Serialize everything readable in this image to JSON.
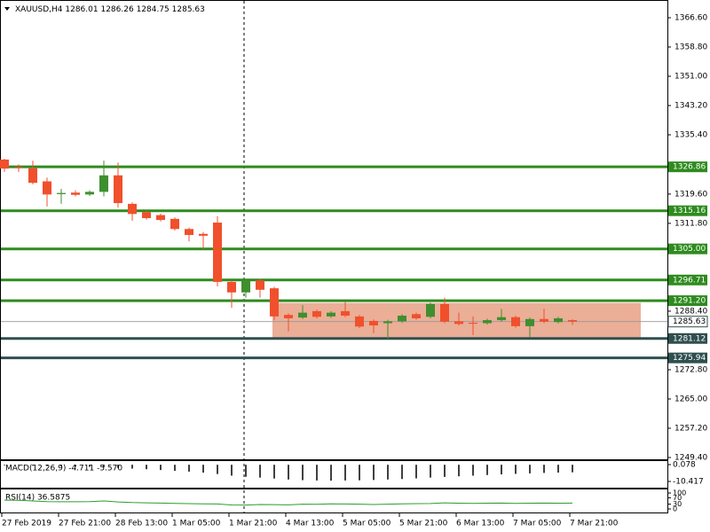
{
  "chart_data": {
    "type": "candlestick",
    "title": "XAUUSD,H4",
    "categories": [
      "27 Feb 2019",
      null,
      null,
      null,
      "27 Feb 21:00",
      null,
      null,
      null,
      "28 Feb 13:00",
      null,
      null,
      null,
      "1 Mar 05:00",
      null,
      null,
      null,
      "1 Mar 21:00",
      null,
      null,
      null,
      "4 Mar 13:00",
      null,
      null,
      null,
      "5 Mar 05:00",
      null,
      null,
      null,
      "5 Mar 21:00",
      null,
      null,
      null,
      "6 Mar 13:00",
      null,
      null,
      null,
      "7 Mar 05:00",
      null,
      null,
      null,
      "7 Mar 21:00"
    ],
    "open": [
      1328.8,
      1326.8,
      1326.5,
      1323.0,
      1319.6,
      1320.0,
      1319.5,
      1320.2,
      1324.6,
      1317.0,
      1314.8,
      1314.0,
      1313.0,
      1310.3,
      1309.0,
      1312.0,
      1296.2,
      1293.4,
      1296.6,
      1294.5,
      1287.4,
      1286.7,
      1288.4,
      1287.0,
      1288.4,
      1287.0,
      1285.8,
      1285.2,
      1285.7,
      1287.6,
      1286.9,
      1290.3,
      1285.7,
      1285.3,
      1285.2,
      1286.0,
      1286.8,
      1284.4,
      1286.3,
      1285.5,
      1286.01
    ],
    "high": [
      1329.0,
      1327.5,
      1328.5,
      1324.0,
      1321.0,
      1320.6,
      1320.6,
      1328.5,
      1328.0,
      1317.4,
      1315.2,
      1314.4,
      1313.4,
      1310.7,
      1309.5,
      1313.7,
      1296.6,
      1297.0,
      1297.0,
      1294.9,
      1287.8,
      1290.0,
      1288.8,
      1288.4,
      1291.0,
      1287.4,
      1286.2,
      1286.1,
      1287.6,
      1288.0,
      1290.7,
      1292.0,
      1288.0,
      1287.0,
      1286.4,
      1289.0,
      1287.2,
      1286.7,
      1289.0,
      1286.9,
      1286.26
    ],
    "low": [
      1325.5,
      1325.5,
      1322.2,
      1316.3,
      1317.0,
      1319.0,
      1319.1,
      1319.0,
      1316.0,
      1312.5,
      1312.8,
      1312.3,
      1309.9,
      1307.0,
      1305.0,
      1295.0,
      1289.3,
      1292.0,
      1292.0,
      1286.0,
      1283.0,
      1286.3,
      1286.5,
      1286.6,
      1286.8,
      1283.9,
      1282.5,
      1281.0,
      1285.3,
      1286.1,
      1286.5,
      1285.2,
      1284.6,
      1282.0,
      1284.8,
      1285.6,
      1284.0,
      1281.5,
      1285.2,
      1285.1,
      1284.75
    ],
    "close": [
      1326.4,
      1326.5,
      1322.6,
      1319.5,
      1319.9,
      1319.4,
      1320.2,
      1324.6,
      1317.2,
      1314.3,
      1313.2,
      1312.7,
      1310.3,
      1308.7,
      1308.5,
      1296.2,
      1293.4,
      1296.6,
      1294.1,
      1287.0,
      1286.5,
      1288.0,
      1286.9,
      1288.0,
      1287.2,
      1284.3,
      1284.6,
      1285.7,
      1287.2,
      1286.5,
      1290.3,
      1285.6,
      1285.0,
      1285.2,
      1286.0,
      1286.8,
      1284.4,
      1286.3,
      1285.6,
      1286.5,
      1285.63
    ],
    "bull_color": "#3f8f2f",
    "bear_color": "#f0502c",
    "ylim": [
      1248.69,
      1370.38
    ],
    "yticks": [
      {
        "value": 1366.6,
        "label": "1366.60"
      },
      {
        "value": 1358.8,
        "label": "1358.80"
      },
      {
        "value": 1351,
        "label": "1351.00"
      },
      {
        "value": 1343.2,
        "label": "1343.20"
      },
      {
        "value": 1335.4,
        "label": "1335.40"
      },
      {
        "value": 1319.6,
        "label": "1319.60"
      },
      {
        "value": 1311.8,
        "label": "1311.80"
      },
      {
        "value": 1288.4,
        "label": "1288.40"
      },
      {
        "value": 1272.8,
        "label": "1272.80"
      },
      {
        "value": 1265,
        "label": "1265.00"
      },
      {
        "value": 1257.2,
        "label": "1257.20"
      },
      {
        "value": 1249.4,
        "label": "1249.40"
      }
    ],
    "levels": [
      {
        "value": 1326.86,
        "label": "1326.86",
        "color": "#2e8b1e"
      },
      {
        "value": 1315.16,
        "label": "1315.16",
        "color": "#2e8b1e"
      },
      {
        "value": 1305,
        "label": "1305.00",
        "color": "#2e8b1e"
      },
      {
        "value": 1296.71,
        "label": "1296.71",
        "color": "#2e8b1e"
      },
      {
        "value": 1291.2,
        "label": "1291.20",
        "color": "#2e8b1e"
      },
      {
        "value": 1281.12,
        "label": "1281.12",
        "color": "#2f4f4f"
      },
      {
        "value": 1275.94,
        "label": "1275.94",
        "color": "#2f4f4f"
      }
    ],
    "zone": {
      "top": 1290.6,
      "bottom": 1281.3,
      "color": "#e9a58c"
    },
    "macd": {
      "label": "MACD(12,26,9) -4.711 -5.570",
      "ylim": [
        -14.28,
        2.29
      ],
      "yticks": [
        0.078,
        -10.417
      ],
      "values": [
        -0.4,
        -0.5,
        -0.6,
        -0.8,
        -1.0,
        -1.2,
        -1.3,
        -1.5,
        -2.0,
        -2.4,
        -2.8,
        -3.3,
        -3.8,
        -4.3,
        -4.9,
        -5.8,
        -6.8,
        -7.5,
        -8.0,
        -8.6,
        -9.2,
        -9.6,
        -9.8,
        -9.9,
        -9.8,
        -9.7,
        -9.5,
        -9.2,
        -8.9,
        -8.5,
        -8.0,
        -7.6,
        -7.2,
        -6.8,
        -6.4,
        -6.0,
        -5.7,
        -5.4,
        -5.1,
        -4.9,
        -4.711
      ]
    },
    "rsi": {
      "label": "RSI(14) 36.5875",
      "ylim": [
        0,
        100
      ],
      "yticks": [
        100,
        70,
        30,
        0
      ],
      "color": "#2e9b2e",
      "values": [
        55,
        54,
        50,
        46,
        45,
        45,
        46,
        50,
        44,
        40,
        38,
        37,
        35,
        33,
        32,
        31,
        25,
        24,
        28,
        27,
        26,
        30,
        29,
        32,
        31,
        30,
        28,
        30,
        32,
        33,
        34,
        38,
        36,
        35,
        36,
        37,
        35,
        36,
        37,
        36,
        36.5875
      ]
    }
  }
}
